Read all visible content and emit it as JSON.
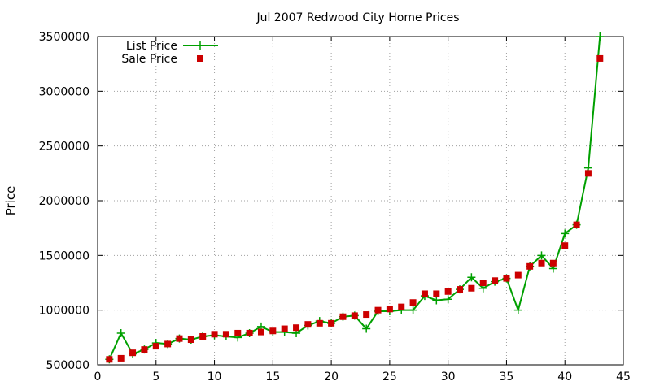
{
  "chart_data": {
    "type": "line",
    "title": "Jul 2007 Redwood City Home Prices",
    "xlabel": "",
    "ylabel": "Price",
    "xlim": [
      0,
      45
    ],
    "ylim": [
      500000,
      3500000
    ],
    "x_ticks": [
      0,
      5,
      10,
      15,
      20,
      25,
      30,
      35,
      40,
      45
    ],
    "y_ticks": [
      500000,
      1000000,
      1500000,
      2000000,
      2500000,
      3000000,
      3500000
    ],
    "grid": true,
    "legend_position": "top-left",
    "x": [
      1,
      2,
      3,
      4,
      5,
      6,
      7,
      8,
      9,
      10,
      11,
      12,
      13,
      14,
      15,
      16,
      17,
      18,
      19,
      20,
      21,
      22,
      23,
      24,
      25,
      26,
      27,
      28,
      29,
      30,
      31,
      32,
      33,
      34,
      35,
      36,
      37,
      38,
      39,
      40,
      41,
      42,
      43
    ],
    "series": [
      {
        "name": "List Price",
        "style": "linespoints",
        "color": "#00a000",
        "marker": "plus",
        "values": [
          550000,
          790000,
          600000,
          640000,
          700000,
          690000,
          740000,
          730000,
          760000,
          770000,
          760000,
          750000,
          790000,
          850000,
          800000,
          800000,
          790000,
          860000,
          900000,
          880000,
          940000,
          950000,
          830000,
          990000,
          990000,
          1000000,
          1000000,
          1130000,
          1090000,
          1100000,
          1190000,
          1300000,
          1200000,
          1260000,
          1290000,
          1000000,
          1400000,
          1500000,
          1380000,
          1700000,
          1780000,
          2300000,
          3500000
        ]
      },
      {
        "name": "Sale Price",
        "style": "points",
        "color": "#cc0000",
        "marker": "square",
        "values": [
          550000,
          560000,
          610000,
          640000,
          670000,
          690000,
          740000,
          730000,
          760000,
          780000,
          780000,
          790000,
          790000,
          800000,
          810000,
          830000,
          840000,
          870000,
          880000,
          880000,
          940000,
          950000,
          960000,
          1000000,
          1010000,
          1030000,
          1070000,
          1150000,
          1150000,
          1170000,
          1190000,
          1200000,
          1250000,
          1270000,
          1290000,
          1320000,
          1400000,
          1430000,
          1430000,
          1590000,
          1780000,
          2250000,
          3300000
        ]
      }
    ]
  }
}
